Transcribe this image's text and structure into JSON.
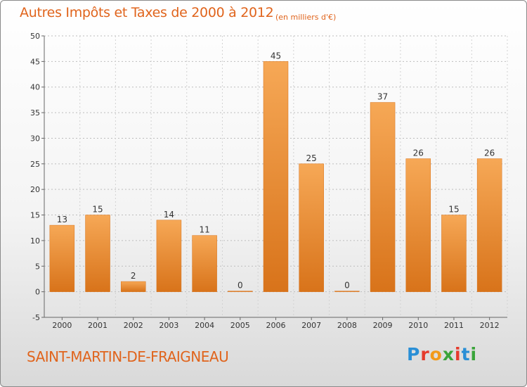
{
  "header": {
    "title": "Autres Impôts et Taxes de 2000 à 2012",
    "subtitle": "(en milliers d'€)"
  },
  "footer": {
    "city": "SAINT-MARTIN-DE-FRAIGNEAU",
    "logo": {
      "letters": [
        "P",
        "r",
        "o",
        "x",
        "i",
        "t",
        "i"
      ],
      "colors": [
        "#2a8fd6",
        "#e53b2c",
        "#f29a1a",
        "#3aa43a",
        "#e53b2c",
        "#2a8fd6",
        "#3aa43a"
      ]
    }
  },
  "colors": {
    "bar": "#ee8a2c",
    "bar_light": "#f6a856",
    "bar_dark": "#d8731a",
    "text_accent": "#e0641c"
  },
  "chart_data": {
    "type": "bar",
    "categories": [
      "2000",
      "2001",
      "2002",
      "2003",
      "2004",
      "2005",
      "2006",
      "2007",
      "2008",
      "2009",
      "2010",
      "2011",
      "2012"
    ],
    "values": [
      13,
      15,
      2,
      14,
      11,
      0,
      45,
      25,
      0,
      37,
      26,
      15,
      26
    ],
    "data_labels": [
      "13",
      "15",
      "2",
      "14",
      "11",
      "0",
      "45",
      "25",
      "0",
      "37",
      "26",
      "15",
      "26"
    ],
    "ylim": [
      -5,
      50
    ],
    "yticks": [
      -5,
      0,
      5,
      10,
      15,
      20,
      25,
      30,
      35,
      40,
      45,
      50
    ],
    "grid": true,
    "title": "Autres Impôts et Taxes de 2000 à 2012",
    "xlabel": "",
    "ylabel": ""
  }
}
